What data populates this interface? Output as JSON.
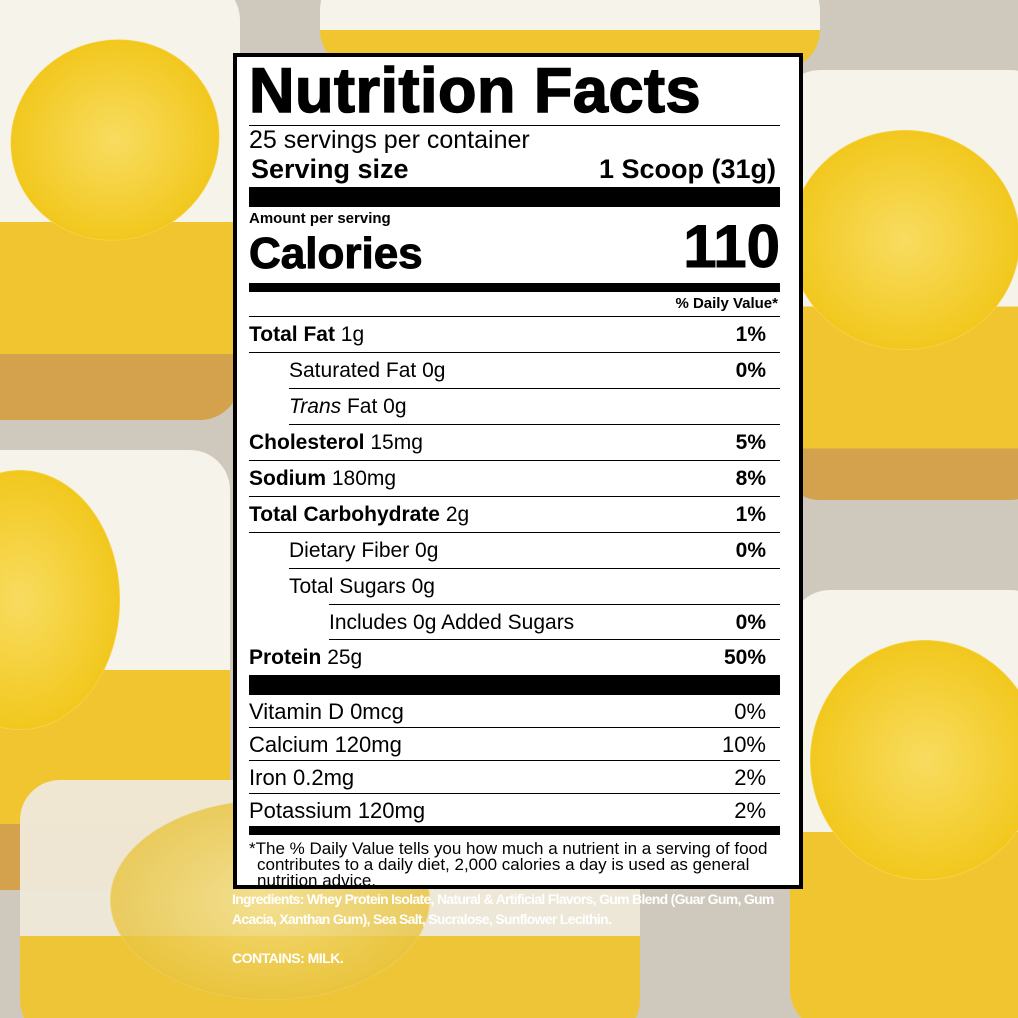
{
  "label": {
    "title": "Nutrition Facts",
    "servings_per_container": "25 servings per container",
    "serving_size_label": "Serving size",
    "serving_size_value": "1 Scoop (31g)",
    "amount_per_serving": "Amount per serving",
    "calories_label": "Calories",
    "calories_value": "110",
    "daily_value_header": "% Daily Value*",
    "nutrients": [
      {
        "name": "Total Fat",
        "amount": "1g",
        "dv": "1%"
      },
      {
        "name": "Saturated Fat",
        "amount": "0g",
        "dv": "0%"
      },
      {
        "name": "Trans",
        "name_suffix": "Fat",
        "amount": "0g",
        "dv": ""
      },
      {
        "name": "Cholesterol",
        "amount": "15mg",
        "dv": "5%"
      },
      {
        "name": "Sodium",
        "amount": "180mg",
        "dv": "8%"
      },
      {
        "name": "Total Carbohydrate",
        "amount": "2g",
        "dv": "1%"
      },
      {
        "name": "Dietary Fiber",
        "amount": "0g",
        "dv": "0%"
      },
      {
        "name": "Total Sugars",
        "amount": "0g",
        "dv": ""
      },
      {
        "name": "Includes 0g Added Sugars",
        "amount": "",
        "dv": "0%"
      },
      {
        "name": "Protein",
        "amount": "25g",
        "dv": "50%"
      }
    ],
    "vitamins": [
      {
        "text": "Vitamin D 0mcg",
        "dv": "0%"
      },
      {
        "text": "Calcium 120mg",
        "dv": "10%"
      },
      {
        "text": "Iron 0.2mg",
        "dv": "2%"
      },
      {
        "text": "Potassium 120mg",
        "dv": "2%"
      }
    ],
    "footnote": "*The % Daily Value tells you how much a nutrient in a serving of food contributes to a daily diet, 2,000 calories a day is used as general nutrition advice."
  },
  "ingredients": "Ingredients: Whey Protein Isolate, Natural & Artificial Flavors, Gum Blend (Guar Gum, Gum Acacia, Xanthan Gum), Sea Salt, Sucralose, Sunflower Lecithin.",
  "contains": "CONTAINS: MILK.",
  "colors": {
    "lemon": "#f2c81e",
    "cream": "#f4f1e6",
    "crust": "#d9a94a"
  }
}
